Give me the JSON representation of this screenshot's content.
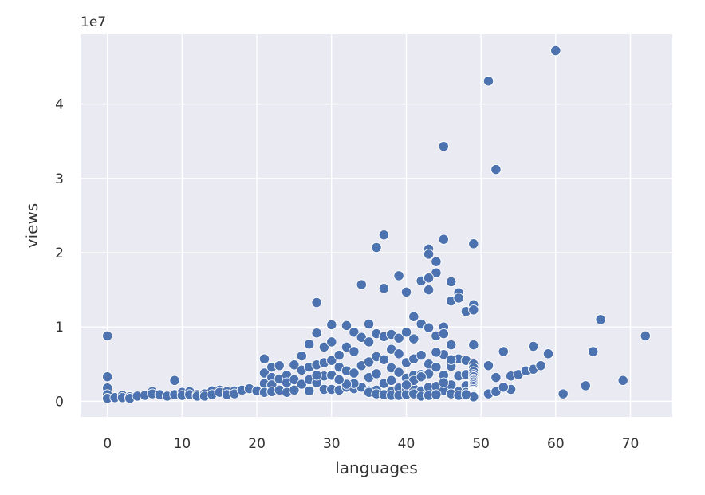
{
  "chart_data": {
    "type": "scatter",
    "title": "",
    "xlabel": "languages",
    "ylabel": "views",
    "y_offset_label": "1e7",
    "xlim": [
      -3.6,
      75.6
    ],
    "ylim": [
      -2100000,
      49400000
    ],
    "xticks": [
      0,
      10,
      20,
      30,
      40,
      50,
      60,
      70
    ],
    "xtick_labels": [
      "0",
      "10",
      "20",
      "30",
      "40",
      "50",
      "60",
      "70"
    ],
    "yticks": [
      0,
      10000000,
      20000000,
      30000000,
      40000000
    ],
    "ytick_labels": [
      "0",
      "1",
      "2",
      "3",
      "4"
    ],
    "grid": true,
    "colors": {
      "background": "#eaeaf2",
      "grid": "#ffffff",
      "marker": "#4c72b0",
      "marker_edge": "#ffffff"
    },
    "series": [
      {
        "x": [
          0,
          0,
          0,
          0,
          0,
          1,
          2,
          2,
          3,
          3,
          4,
          5,
          6,
          6,
          7,
          8,
          9,
          9,
          10,
          10,
          11,
          11,
          12,
          12,
          13,
          13,
          14,
          14,
          15,
          15,
          16,
          16,
          17,
          17,
          18,
          19,
          20,
          21,
          21,
          21,
          21,
          22,
          22,
          22,
          22,
          23,
          23,
          23,
          24,
          24,
          24,
          25,
          25,
          25,
          26,
          26,
          26,
          27,
          27,
          27,
          27,
          28,
          28,
          28,
          28,
          29,
          29,
          29,
          29,
          30,
          30,
          30,
          30,
          30,
          31,
          31,
          31,
          31,
          32,
          32,
          32,
          32,
          33,
          33,
          33,
          33,
          34,
          34,
          34,
          34,
          35,
          35,
          35,
          35,
          35,
          36,
          36,
          36,
          36,
          36,
          37,
          37,
          37,
          37,
          37,
          38,
          38,
          38,
          38,
          38,
          39,
          39,
          39,
          39,
          39,
          40,
          40,
          40,
          40,
          40,
          41,
          41,
          41,
          41,
          41,
          42,
          42,
          42,
          42,
          42,
          43,
          43,
          43,
          43,
          43,
          43,
          43,
          44,
          44,
          44,
          44,
          44,
          45,
          45,
          45,
          45,
          45,
          45,
          45,
          46,
          46,
          46,
          46,
          46,
          47,
          47,
          47,
          47,
          47,
          48,
          48,
          48,
          48,
          48,
          48,
          49,
          49,
          49,
          49,
          49,
          49,
          49,
          49,
          49,
          49,
          49,
          49,
          49,
          49,
          49,
          49,
          49,
          49,
          49,
          49,
          49,
          49,
          49,
          49,
          49,
          49,
          51,
          51,
          52,
          52,
          53,
          54,
          54,
          55,
          56,
          57,
          57,
          58,
          59,
          60,
          61,
          64,
          65,
          66,
          69,
          72,
          35,
          36,
          37,
          38,
          39,
          40,
          41,
          42,
          43,
          44,
          46,
          47,
          48,
          45,
          51,
          52,
          53,
          60,
          43,
          43,
          44,
          45,
          46,
          41,
          42,
          40,
          33,
          32,
          28,
          31
        ],
        "y": [
          8800000,
          3300000,
          1800000,
          900000,
          400000,
          500000,
          800000,
          500000,
          600000,
          400000,
          700000,
          800000,
          1300000,
          1000000,
          900000,
          700000,
          2800000,
          900000,
          1200000,
          800000,
          1300000,
          900000,
          900000,
          700000,
          1000000,
          700000,
          1400000,
          900000,
          1500000,
          1200000,
          1300000,
          900000,
          1400000,
          1000000,
          1500000,
          1700000,
          1400000,
          5700000,
          3800000,
          2400000,
          1200000,
          4600000,
          3200000,
          2200000,
          1300000,
          4800000,
          3000000,
          1500000,
          3500000,
          2500000,
          1200000,
          4900000,
          2900000,
          1500000,
          6100000,
          4200000,
          2300000,
          7700000,
          4600000,
          2900000,
          1400000,
          13300000,
          9200000,
          4900000,
          2500000,
          7300000,
          5200000,
          3400000,
          1600000,
          10300000,
          8000000,
          5500000,
          3500000,
          1600000,
          6200000,
          4600000,
          3000000,
          1500000,
          10200000,
          7300000,
          4100000,
          1900000,
          9300000,
          6700000,
          3800000,
          1700000,
          15700000,
          8600000,
          4800000,
          1900000,
          10400000,
          8000000,
          5300000,
          3200000,
          1400000,
          20700000,
          9100000,
          6000000,
          3700000,
          1500000,
          22400000,
          15200000,
          8700000,
          5600000,
          2400000,
          9000000,
          7000000,
          4500000,
          2800000,
          1300000,
          16900000,
          8500000,
          6400000,
          3900000,
          1800000,
          14700000,
          9300000,
          5200000,
          3100000,
          1600000,
          11400000,
          8400000,
          5700000,
          3500000,
          1700000,
          16200000,
          10400000,
          6200000,
          3600000,
          1400000,
          20500000,
          19800000,
          15000000,
          16700000,
          9900000,
          5000000,
          1900000,
          18800000,
          17300000,
          8800000,
          4600000,
          2000000,
          34300000,
          21800000,
          10000000,
          9100000,
          6300000,
          3500000,
          1400000,
          16100000,
          13500000,
          7600000,
          4700000,
          2200000,
          14600000,
          13900000,
          5700000,
          3400000,
          1300000,
          12100000,
          5500000,
          3600000,
          2100000,
          1200000,
          800000,
          21200000,
          13000000,
          12300000,
          7600000,
          5000000,
          4500000,
          4000000,
          3600000,
          3300000,
          3000000,
          2800000,
          2600000,
          2400000,
          2200000,
          2000000,
          1800000,
          1600000,
          1400000,
          1300000,
          1200000,
          1100000,
          1000000,
          900000,
          800000,
          700000,
          600000,
          4800000,
          1000000,
          3200000,
          1300000,
          6700000,
          3400000,
          1600000,
          3600000,
          4100000,
          7400000,
          4300000,
          4800000,
          6400000,
          47200000,
          1000000,
          2100000,
          6700000,
          11000000,
          2800000,
          8800000,
          1200000,
          1000000,
          900000,
          800000,
          800000,
          900000,
          1000000,
          700000,
          800000,
          900000,
          1000000,
          800000,
          900000,
          2500000,
          43100000,
          31200000,
          1900000,
          47200000,
          16600000,
          3700000,
          6600000,
          21800000,
          5600000,
          2800000,
          3300000,
          2200000,
          2400000,
          2300000,
          3500000,
          2900000
        ]
      }
    ]
  }
}
